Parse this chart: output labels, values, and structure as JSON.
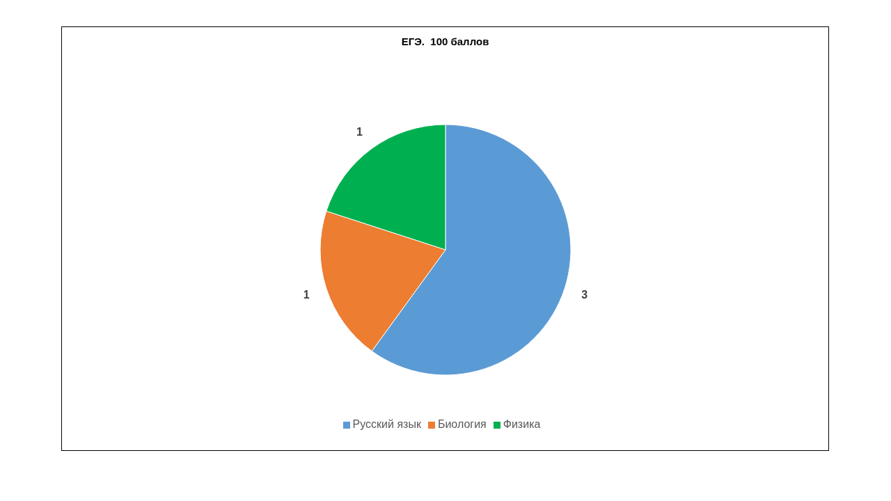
{
  "chart_data": {
    "type": "pie",
    "title": "ЕГЭ.  100 баллов",
    "categories": [
      "Русский язык",
      "Биология",
      "Физика"
    ],
    "values": [
      3,
      1,
      1
    ],
    "colors": [
      "#5b9bd5",
      "#ed7d31",
      "#00b050"
    ],
    "data_labels": true,
    "legend": "bottom"
  }
}
